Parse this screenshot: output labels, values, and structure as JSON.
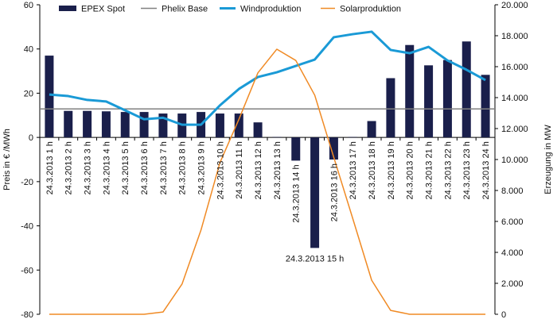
{
  "chart_data": {
    "type": "bar+line",
    "categories": [
      "24.3.2013 1 h",
      "24.3.2013 2 h",
      "24.3.2013 3 h",
      "24.3.2013 4 h",
      "24.3.2013 5 h",
      "24.3.2013 6 h",
      "24.3.2013 7 h",
      "24.3.2013 8 h",
      "24.3.2013 9 h",
      "24.3.2013 10 h",
      "24.3.2013 11 h",
      "24.3.2013 12 h",
      "24.3.2013 13 h",
      "24.3.2013 14 h",
      "24.3.2013 15 h",
      "24.3.2013 16 h",
      "24.3.2013 17 h",
      "24.3.2013 18 h",
      "24.3.2013 19 h",
      "24.3.2013 20 h",
      "24.3.2013 21 h",
      "24.3.2013 22 h",
      "24.3.2013 23 h",
      "24.3.2013 24 h"
    ],
    "series": [
      {
        "name": "EPEX Spot",
        "type": "bar",
        "axis": "left",
        "color": "#1a1f4b",
        "values": [
          37,
          12,
          12,
          11.8,
          11.5,
          11.5,
          10.8,
          10.8,
          11.5,
          10.8,
          10.8,
          6.8,
          0.2,
          -10.5,
          -50,
          -10,
          0.2,
          7.4,
          26.8,
          41.8,
          32.6,
          35,
          43.4,
          28.3
        ]
      },
      {
        "name": "Phelix Base",
        "type": "line",
        "axis": "left",
        "color": "#808080",
        "values": [
          12.9,
          12.9,
          12.9,
          12.9,
          12.9,
          12.9,
          12.9,
          12.9,
          12.9,
          12.9,
          12.9,
          12.9,
          12.9,
          12.9,
          12.9,
          12.9,
          12.9,
          12.9,
          12.9,
          12.9,
          12.9,
          12.9,
          12.9,
          12.9
        ]
      },
      {
        "name": "Windproduktion",
        "type": "line",
        "axis": "right",
        "color": "#1a9ad6",
        "values": [
          14200,
          14100,
          13850,
          13750,
          13180,
          12600,
          12700,
          12250,
          12250,
          13500,
          14560,
          15330,
          15640,
          16050,
          16460,
          17900,
          18100,
          18260,
          17080,
          16870,
          17280,
          16400,
          15800,
          15130
        ]
      },
      {
        "name": "Solarproduktion",
        "type": "line",
        "axis": "right",
        "color": "#f08a24",
        "values": [
          0,
          0,
          0,
          0,
          0,
          0,
          150,
          1950,
          5440,
          9800,
          12600,
          15600,
          17130,
          16400,
          14150,
          10150,
          6200,
          2200,
          250,
          0,
          0,
          0,
          0,
          0
        ]
      }
    ],
    "ylabel": "Preis in € /MWh",
    "y2label": "Erzeugung in MW",
    "ylim": [
      -80,
      60
    ],
    "y2lim": [
      0,
      20000
    ],
    "yticks": [
      "60",
      "40",
      "20",
      "0",
      "-20",
      "-40",
      "-60",
      "-80"
    ],
    "y2ticks": [
      "20.000",
      "18.000",
      "16.000",
      "14.000",
      "12.000",
      "10.000",
      "8.000",
      "6.000",
      "4.000",
      "2.000",
      "0"
    ],
    "legend_position": "top"
  }
}
